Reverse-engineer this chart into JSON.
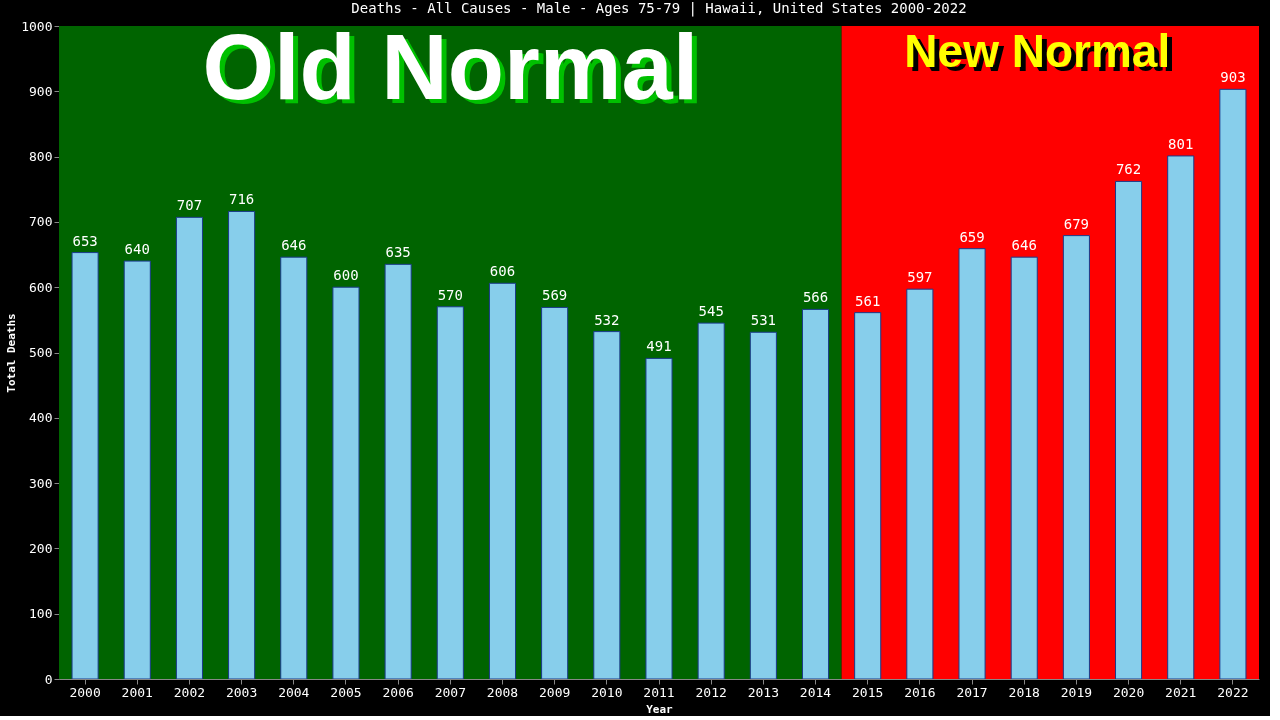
{
  "chart_data": {
    "type": "bar",
    "title": "Deaths - All Causes - Male - Ages 75-79 | Hawaii, United States 2000-2022",
    "xlabel": "Year",
    "ylabel": "Total Deaths",
    "categories": [
      "2000",
      "2001",
      "2002",
      "2003",
      "2004",
      "2005",
      "2006",
      "2007",
      "2008",
      "2009",
      "2010",
      "2011",
      "2012",
      "2013",
      "2014",
      "2015",
      "2016",
      "2017",
      "2018",
      "2019",
      "2020",
      "2021",
      "2022"
    ],
    "values": [
      653,
      640,
      707,
      716,
      646,
      600,
      635,
      570,
      606,
      569,
      532,
      491,
      545,
      531,
      566,
      561,
      597,
      659,
      646,
      679,
      762,
      801,
      903
    ],
    "color": "#87ceeb",
    "ylim": [
      0,
      1000
    ],
    "yticks": [
      0,
      100,
      200,
      300,
      400,
      500,
      600,
      700,
      800,
      900,
      1000
    ],
    "data_labels": true,
    "grid": false,
    "bands": [
      {
        "axis": "x",
        "from": "2000",
        "to": "2014",
        "label": "Old Normal",
        "color": "#006400"
      },
      {
        "axis": "x",
        "from": "2015",
        "to": "2022",
        "label": "New Normal",
        "color": "#ff0000"
      }
    ]
  }
}
